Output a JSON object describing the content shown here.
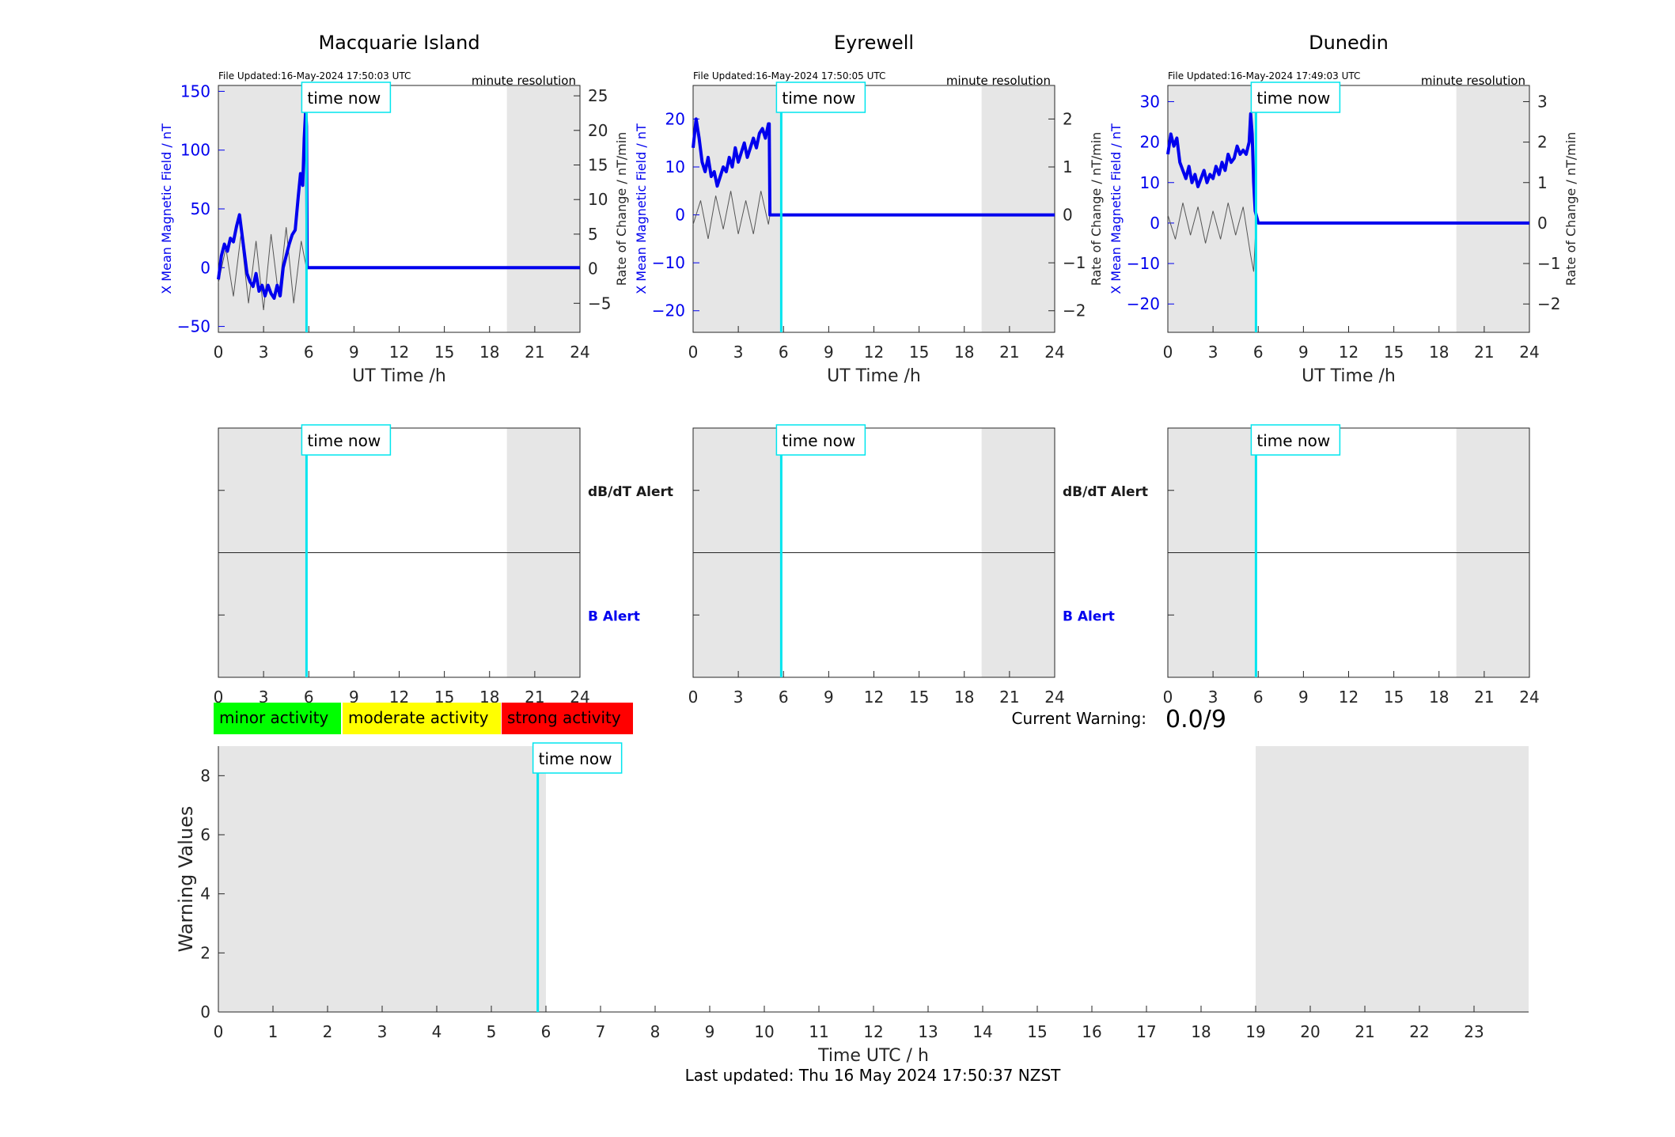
{
  "page": {
    "time_now_label": "time now",
    "current_warning_label": "Current Warning:",
    "current_warning_value": "0.0/9",
    "last_updated": "Last updated: Thu 16 May 2024 17:50:37 NZST"
  },
  "legend": {
    "items": [
      {
        "label": "minor activity",
        "color": "#00ff00"
      },
      {
        "label": "moderate activity",
        "color": "#ffff00"
      },
      {
        "label": "strong activity",
        "color": "#ff0000"
      }
    ]
  },
  "colors": {
    "field": "#0000ee",
    "rate": "#555555",
    "time_now": "#00e5ee",
    "shade": "#e6e6e6"
  },
  "chart_data": [
    {
      "type": "line",
      "title": "Macquarie Island",
      "file_updated": "File Updated:16-May-2024 17:50:03 UTC",
      "resolution": "minute resolution",
      "xlabel": "UT Time /h",
      "ylabel": "X Mean Magnetic Field / nT",
      "y2label": "Rate of Change / nT/min",
      "xlim": [
        0,
        24
      ],
      "ylim": [
        -55,
        155
      ],
      "y2lim": [
        -9.2,
        26.5
      ],
      "xticks": [
        0,
        3,
        6,
        9,
        12,
        15,
        18,
        21,
        24
      ],
      "yticks": [
        -50,
        0,
        50,
        100,
        150
      ],
      "y2ticks": [
        -5,
        0,
        5,
        10,
        15,
        20,
        25
      ],
      "time_now": 5.85,
      "shaded": [
        [
          0,
          5.85
        ],
        [
          19.15,
          24
        ]
      ],
      "series": [
        {
          "x": [
            0,
            0.2,
            0.4,
            0.6,
            0.8,
            1.0,
            1.2,
            1.4,
            1.5,
            1.7,
            1.9,
            2.1,
            2.3,
            2.5,
            2.7,
            2.9,
            3.1,
            3.3,
            3.5,
            3.7,
            3.9,
            4.1,
            4.3,
            4.5,
            4.7,
            4.9,
            5.1,
            5.3,
            5.45,
            5.6,
            5.7,
            5.8,
            5.85,
            5.9,
            24
          ],
          "y": [
            -10,
            10,
            20,
            14,
            25,
            22,
            35,
            45,
            35,
            15,
            -5,
            -12,
            -16,
            -5,
            -20,
            -15,
            -24,
            -15,
            -22,
            -26,
            -15,
            -24,
            0,
            10,
            20,
            28,
            32,
            60,
            80,
            70,
            110,
            135,
            120,
            0,
            0
          ]
        },
        {
          "x": [
            0,
            0.5,
            1.0,
            1.5,
            2.0,
            2.5,
            3.0,
            3.5,
            4.0,
            4.5,
            5.0,
            5.5,
            5.85,
            24
          ],
          "y": [
            -2,
            3,
            -4,
            5,
            -5,
            4,
            -6,
            5,
            -4,
            6,
            -5,
            4,
            0,
            0
          ]
        }
      ]
    },
    {
      "type": "line",
      "title": "Eyrewell",
      "file_updated": "File Updated:16-May-2024 17:50:05 UTC",
      "resolution": "minute resolution",
      "xlabel": "UT Time /h",
      "ylabel": "X Mean Magnetic Field / nT",
      "y2label": "Rate of Change / nT/min",
      "xlim": [
        0,
        24
      ],
      "ylim": [
        -24.5,
        27
      ],
      "y2lim": [
        -2.45,
        2.7
      ],
      "xticks": [
        0,
        3,
        6,
        9,
        12,
        15,
        18,
        21,
        24
      ],
      "yticks": [
        -20,
        -10,
        0,
        10,
        20
      ],
      "y2ticks": [
        -2,
        -1,
        0,
        1,
        2
      ],
      "time_now": 5.85,
      "shaded": [
        [
          0,
          5.85
        ],
        [
          19.15,
          24
        ]
      ],
      "series": [
        {
          "x": [
            0,
            0.2,
            0.4,
            0.6,
            0.8,
            1.0,
            1.2,
            1.4,
            1.6,
            1.8,
            2.0,
            2.2,
            2.4,
            2.6,
            2.8,
            3.0,
            3.2,
            3.4,
            3.6,
            3.8,
            4.0,
            4.2,
            4.4,
            4.6,
            4.8,
            5.0,
            5.05,
            5.1,
            24
          ],
          "y": [
            14,
            20,
            16,
            11,
            9,
            12,
            8,
            9,
            6,
            8,
            10,
            9,
            12,
            10,
            14,
            11,
            13,
            15,
            12,
            14,
            16,
            14,
            17,
            18,
            16,
            19,
            19,
            0,
            0
          ]
        },
        {
          "x": [
            0,
            0.5,
            1.0,
            1.5,
            2.0,
            2.5,
            3.0,
            3.5,
            4.0,
            4.5,
            5.0,
            5.1,
            24
          ],
          "y": [
            -0.2,
            0.3,
            -0.5,
            0.4,
            -0.3,
            0.5,
            -0.4,
            0.3,
            -0.4,
            0.5,
            -0.2,
            0,
            0
          ]
        }
      ]
    },
    {
      "type": "line",
      "title": "Dunedin",
      "file_updated": "File Updated:16-May-2024 17:49:03 UTC",
      "resolution": "minute resolution",
      "xlabel": "UT Time /h",
      "ylabel": "X Mean Magnetic Field / nT",
      "y2label": "Rate of Change / nT/min",
      "xlim": [
        0,
        24
      ],
      "ylim": [
        -27,
        34
      ],
      "y2lim": [
        -2.7,
        3.4
      ],
      "xticks": [
        0,
        3,
        6,
        9,
        12,
        15,
        18,
        21,
        24
      ],
      "yticks": [
        -20,
        -10,
        0,
        10,
        20,
        30
      ],
      "y2ticks": [
        -2,
        -1,
        0,
        1,
        2,
        3
      ],
      "time_now": 5.85,
      "shaded": [
        [
          0,
          5.85
        ],
        [
          19.15,
          24
        ]
      ],
      "series": [
        {
          "x": [
            0,
            0.2,
            0.4,
            0.6,
            0.8,
            1.0,
            1.2,
            1.4,
            1.6,
            1.8,
            2.0,
            2.2,
            2.4,
            2.6,
            2.8,
            3.0,
            3.2,
            3.4,
            3.6,
            3.8,
            4.0,
            4.2,
            4.4,
            4.6,
            4.8,
            5.0,
            5.2,
            5.4,
            5.5,
            5.6,
            5.7,
            5.8,
            6.0,
            24
          ],
          "y": [
            17,
            22,
            19,
            21,
            15,
            13,
            11,
            14,
            10,
            12,
            9,
            11,
            13,
            10,
            12,
            11,
            14,
            12,
            15,
            13,
            17,
            15,
            16,
            19,
            17,
            18,
            17,
            20,
            27,
            22,
            10,
            3,
            0,
            0
          ]
        },
        {
          "x": [
            0,
            0.5,
            1.0,
            1.5,
            2.0,
            2.5,
            3.0,
            3.5,
            4.0,
            4.5,
            5.0,
            5.5,
            5.7,
            5.85,
            24
          ],
          "y": [
            0.2,
            -0.4,
            0.5,
            -0.3,
            0.4,
            -0.5,
            0.3,
            -0.4,
            0.5,
            -0.3,
            0.4,
            -0.8,
            -1.2,
            0,
            0
          ]
        }
      ]
    },
    {
      "type": "line",
      "title": "",
      "alert_labels": [
        "dB/dT Alert",
        "B Alert"
      ],
      "xlim": [
        0,
        24
      ],
      "xticks": [
        0,
        3,
        6,
        9,
        12,
        15,
        18,
        21,
        24
      ],
      "time_now": 5.85,
      "shaded": [
        [
          0,
          5.85
        ],
        [
          19.15,
          24
        ]
      ]
    },
    {
      "type": "line",
      "title": "",
      "alert_labels": [
        "dB/dT Alert",
        "B Alert"
      ],
      "xlim": [
        0,
        24
      ],
      "xticks": [
        0,
        3,
        6,
        9,
        12,
        15,
        18,
        21,
        24
      ],
      "time_now": 5.85,
      "shaded": [
        [
          0,
          5.85
        ],
        [
          19.15,
          24
        ]
      ]
    },
    {
      "type": "line",
      "title": "",
      "alert_labels": [],
      "xlim": [
        0,
        24
      ],
      "xticks": [
        0,
        3,
        6,
        9,
        12,
        15,
        18,
        21,
        24
      ],
      "time_now": 5.85,
      "shaded": [
        [
          0,
          5.85
        ],
        [
          19.15,
          24
        ]
      ]
    },
    {
      "type": "bar",
      "title": "",
      "xlabel": "Time UTC / h",
      "ylabel": "Warning Values",
      "xlim": [
        0,
        24
      ],
      "ylim": [
        0,
        9
      ],
      "xticks": [
        0,
        1,
        2,
        3,
        4,
        5,
        6,
        7,
        8,
        9,
        10,
        11,
        12,
        13,
        14,
        15,
        16,
        17,
        18,
        19,
        20,
        21,
        22,
        23
      ],
      "yticks": [
        0,
        2,
        4,
        6,
        8
      ],
      "time_now": 5.85,
      "shaded": [
        [
          0,
          6
        ],
        [
          19,
          24
        ]
      ],
      "values": []
    }
  ]
}
